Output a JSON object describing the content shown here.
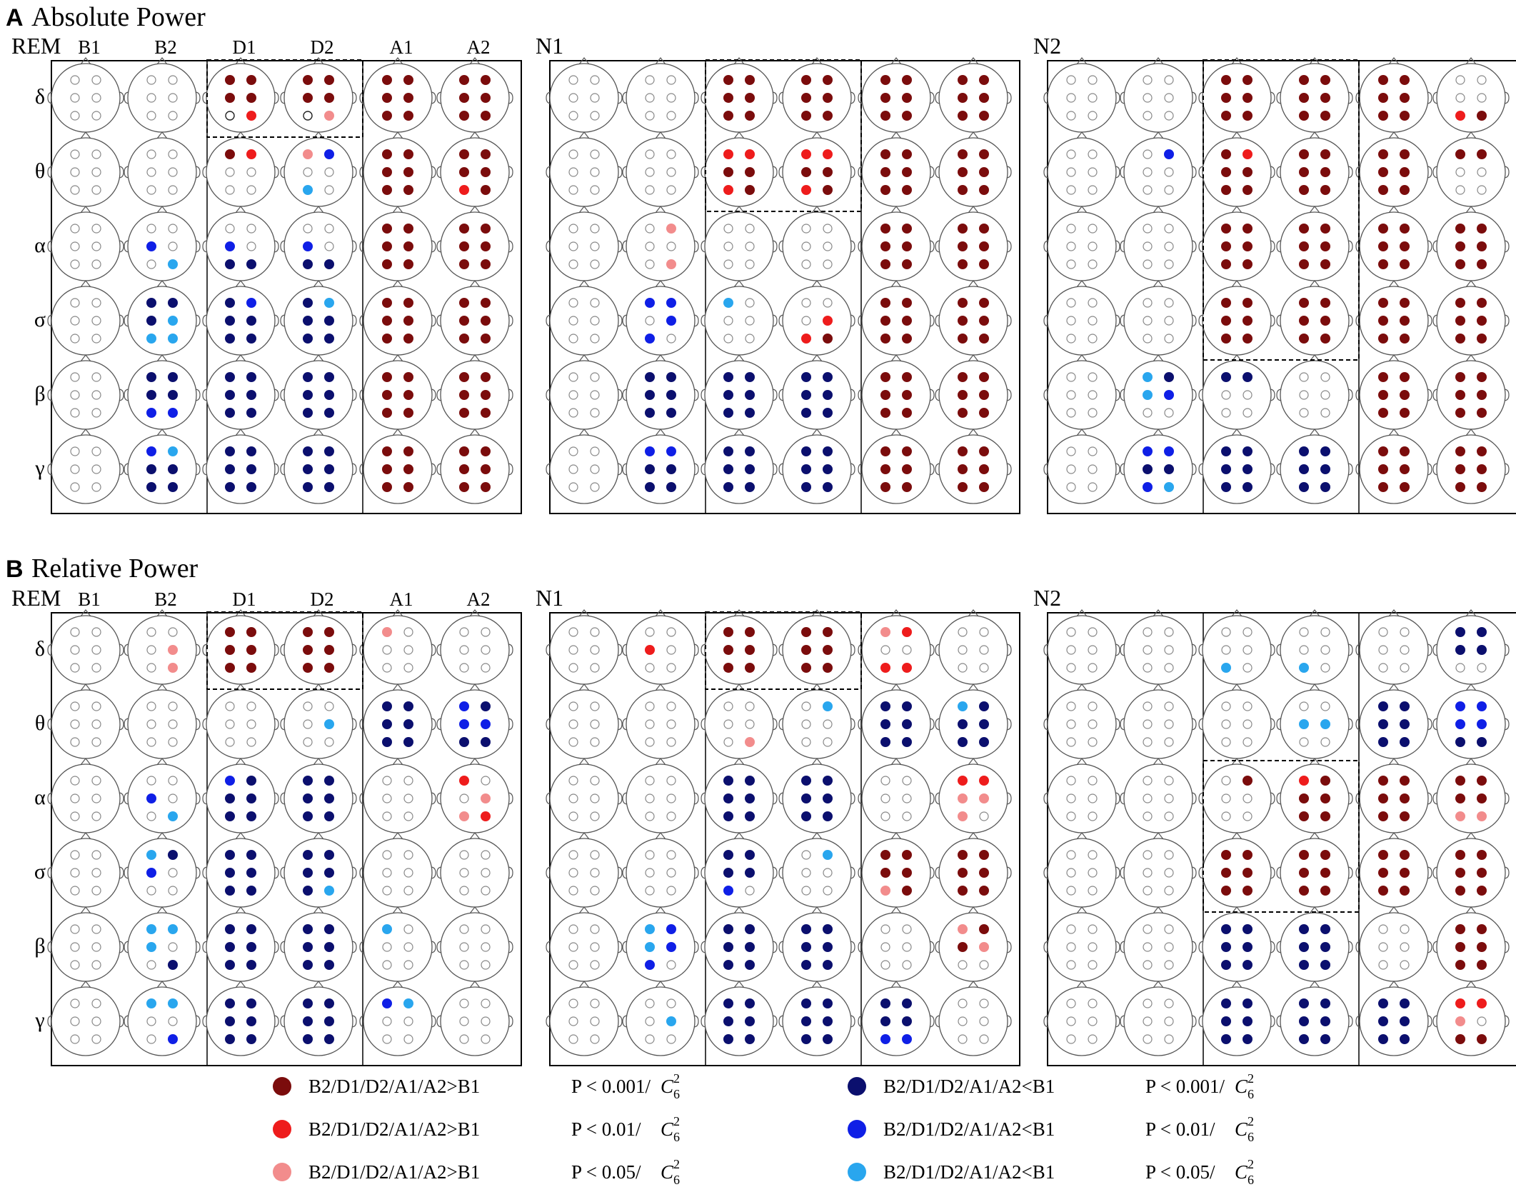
{
  "panels": [
    {
      "letter": "A",
      "title": "Absolute Power",
      "conditions": [
        "B1",
        "B2",
        "D1",
        "D2",
        "A1",
        "A2"
      ],
      "bands": [
        "δ",
        "θ",
        "α",
        "σ",
        "β",
        "γ"
      ],
      "groups": [
        {
          "label": "REM",
          "maps": [
            [
              "......",
              "......",
              "DDDDwR",
              "DDDDwP",
              "DDDDDD",
              "DDDDDD"
            ],
            [
              "......",
              "......",
              "DR....",
              "PB..c.",
              "DDDDDD",
              "DDDDRD"
            ],
            [
              "......",
              "..B..c",
              "..B.NN",
              "..B.NN",
              "DDDDDD",
              "DDDDDD"
            ],
            [
              "......",
              "NNNccc",
              "NBNNNN",
              "NcNNNN",
              "DDDDDD",
              "DDDDDD"
            ],
            [
              "......",
              "NNNNBB",
              "NNNNNN",
              "NNNNNN",
              "DDDDDD",
              "DDDDDD"
            ],
            [
              "......",
              "BcNNNN",
              "NNNNNN",
              "NNNNNN",
              "DDDDDD",
              "DDDDDD"
            ]
          ]
        },
        {
          "label": "N1",
          "maps": [
            [
              "......",
              "......",
              "DDDDDD",
              "DDDDDD",
              "DDDDDD",
              "DDDDDD"
            ],
            [
              "......",
              "......",
              "RRDDRD",
              "RRDDRD",
              "DDDDDD",
              "DDDDDD"
            ],
            [
              "......",
              ".P...P",
              "......",
              "......",
              "DDDDDD",
              "DDDDDD"
            ],
            [
              "......",
              "BB.BB.",
              "c.....",
              "...RRD",
              "DDDDDD",
              "DDDDDD"
            ],
            [
              "......",
              "NNNNNN",
              "NNNNNN",
              "NNNNNN",
              "DDDDDD",
              "DDDDDD"
            ],
            [
              "......",
              "BBNNNN",
              "NNNNNN",
              "NNNNNN",
              "DDDDDD",
              "DDDDDD"
            ]
          ]
        },
        {
          "label": "N2",
          "maps": [
            [
              "......",
              "......",
              "DDDDDD",
              "DDDDDD",
              "DDDDDD",
              "....RD"
            ],
            [
              "......",
              ".B....",
              "DRDDDD",
              "DDDDDD",
              "DDDDDD",
              "DD...."
            ],
            [
              "......",
              "......",
              "DDDDDD",
              "DDDDDD",
              "DDDDDD",
              "DDDDDD"
            ],
            [
              "......",
              "......",
              "DDDDDD",
              "DDDDDD",
              "DDDDDD",
              "DDDDDD"
            ],
            [
              "......",
              "cNcB..",
              "NN....",
              "......",
              "DDDDDD",
              "DDDDDD"
            ],
            [
              "......",
              "BBNNBc",
              "NNNNNN",
              "NNNNNN",
              "DDDDDD",
              "DDDDDD"
            ]
          ]
        }
      ]
    },
    {
      "letter": "B",
      "title": "Relative Power",
      "conditions": [
        "B1",
        "B2",
        "D1",
        "D2",
        "A1",
        "A2"
      ],
      "bands": [
        "δ",
        "θ",
        "α",
        "σ",
        "β",
        "γ"
      ],
      "groups": [
        {
          "label": "REM",
          "maps": [
            [
              "......",
              "...P.P",
              "DDDDDD",
              "DDDDDD",
              "P.....",
              "......"
            ],
            [
              "......",
              "......",
              "......",
              "...c..",
              "NNNNNN",
              "BNBBNN"
            ],
            [
              "......",
              "..B..c",
              "BNNNNN",
              "NNNNNN",
              "......",
              "R..PPR"
            ],
            [
              "......",
              "cNB...",
              "NNNNNN",
              "NNNNNc",
              "......",
              "......"
            ],
            [
              "......",
              "ccc..N",
              "NNNNNN",
              "NNNNNN",
              "c.....",
              "......"
            ],
            [
              "......",
              "cc...B",
              "NNNNNN",
              "NNNNNN",
              "Bc....",
              "......"
            ]
          ]
        },
        {
          "label": "N1",
          "maps": [
            [
              "......",
              "..R...",
              "DDDDDD",
              "DDDDDD",
              "PR..RR",
              "......"
            ],
            [
              "......",
              "......",
              ".....P",
              ".c....",
              "NNNNNN",
              "cNNNNN"
            ],
            [
              "......",
              "......",
              "NNNNNN",
              "NNNNNN",
              "......",
              "RRPPP."
            ],
            [
              "......",
              "......",
              "NNNNB.",
              ".c....",
              "DDDDPD",
              "DDDDDD"
            ],
            [
              "......",
              "cBcBB.",
              "NNNNNN",
              "NNNNNN",
              "......",
              "PDDP.."
            ],
            [
              "......",
              "...c..",
              "NNNNNN",
              "NNNNNN",
              "NNNNBB",
              "......"
            ]
          ]
        },
        {
          "label": "N2",
          "maps": [
            [
              "......",
              "......",
              "....c.",
              "....c.",
              "......",
              "NNNN.."
            ],
            [
              "......",
              "......",
              "......",
              "..cc..",
              "NNNNNN",
              "BBBBNN"
            ],
            [
              "......",
              "......",
              ".D....",
              "RDDDDD",
              "DDDDDD",
              "DDDDPP"
            ],
            [
              "......",
              "......",
              "DDDDDD",
              "DDDDDD",
              "DDDDDD",
              "DDDDDD"
            ],
            [
              "......",
              "......",
              "NNNNNN",
              "NNNNNN",
              "......",
              "DDDDDD"
            ],
            [
              "......",
              "......",
              "NNNNNN",
              "NNNNNN",
              "NNNNNN",
              "RRP.DD"
            ]
          ]
        }
      ]
    }
  ],
  "legend": {
    "items": [
      {
        "key": "D",
        "color": "#7b0c0c",
        "text": "B2/D1/D2/A1/A2>B1",
        "p": "P < 0.001/",
        "c": "C",
        "sub": "6",
        "sup": "2"
      },
      {
        "key": "R",
        "color": "#ee1c1c",
        "text": "B2/D1/D2/A1/A2>B1",
        "p": "P < 0.01/",
        "c": "C",
        "sub": "6",
        "sup": "2"
      },
      {
        "key": "P",
        "color": "#f28c8c",
        "text": "B2/D1/D2/A1/A2>B1",
        "p": "P < 0.05/",
        "c": "C",
        "sub": "6",
        "sup": "2"
      },
      {
        "key": "N",
        "color": "#0b0f6e",
        "text": "B2/D1/D2/A1/A2<B1",
        "p": "P < 0.001/",
        "c": "C",
        "sub": "6",
        "sup": "2"
      },
      {
        "key": "B",
        "color": "#0f1fe6",
        "text": "B2/D1/D2/A1/A2<B1",
        "p": "P < 0.01/",
        "c": "C",
        "sub": "6",
        "sup": "2"
      },
      {
        "key": "c",
        "color": "#29a6ee",
        "text": "B2/D1/D2/A1/A2<B1",
        "p": "P < 0.05/",
        "c": "C",
        "sub": "6",
        "sup": "2"
      }
    ]
  },
  "colors": {
    "D": "#7b0c0c",
    "R": "#ee1c1c",
    "P": "#f28c8c",
    "N": "#0b0f6e",
    "B": "#0f1fe6",
    "c": "#29a6ee",
    "w": "#ffffff",
    "empty": "#ffffff",
    "outline": "#888888",
    "frame": "#000000"
  },
  "highlight_boxes": [
    {
      "panel": 0,
      "group": 0,
      "rows": [
        0,
        0
      ]
    },
    {
      "panel": 0,
      "group": 1,
      "rows": [
        0,
        1
      ]
    },
    {
      "panel": 0,
      "group": 2,
      "rows": [
        0,
        3
      ]
    },
    {
      "panel": 1,
      "group": 0,
      "rows": [
        0,
        0
      ]
    },
    {
      "panel": 1,
      "group": 1,
      "rows": [
        0,
        0
      ]
    },
    {
      "panel": 1,
      "group": 2,
      "rows": [
        2,
        3
      ]
    }
  ]
}
